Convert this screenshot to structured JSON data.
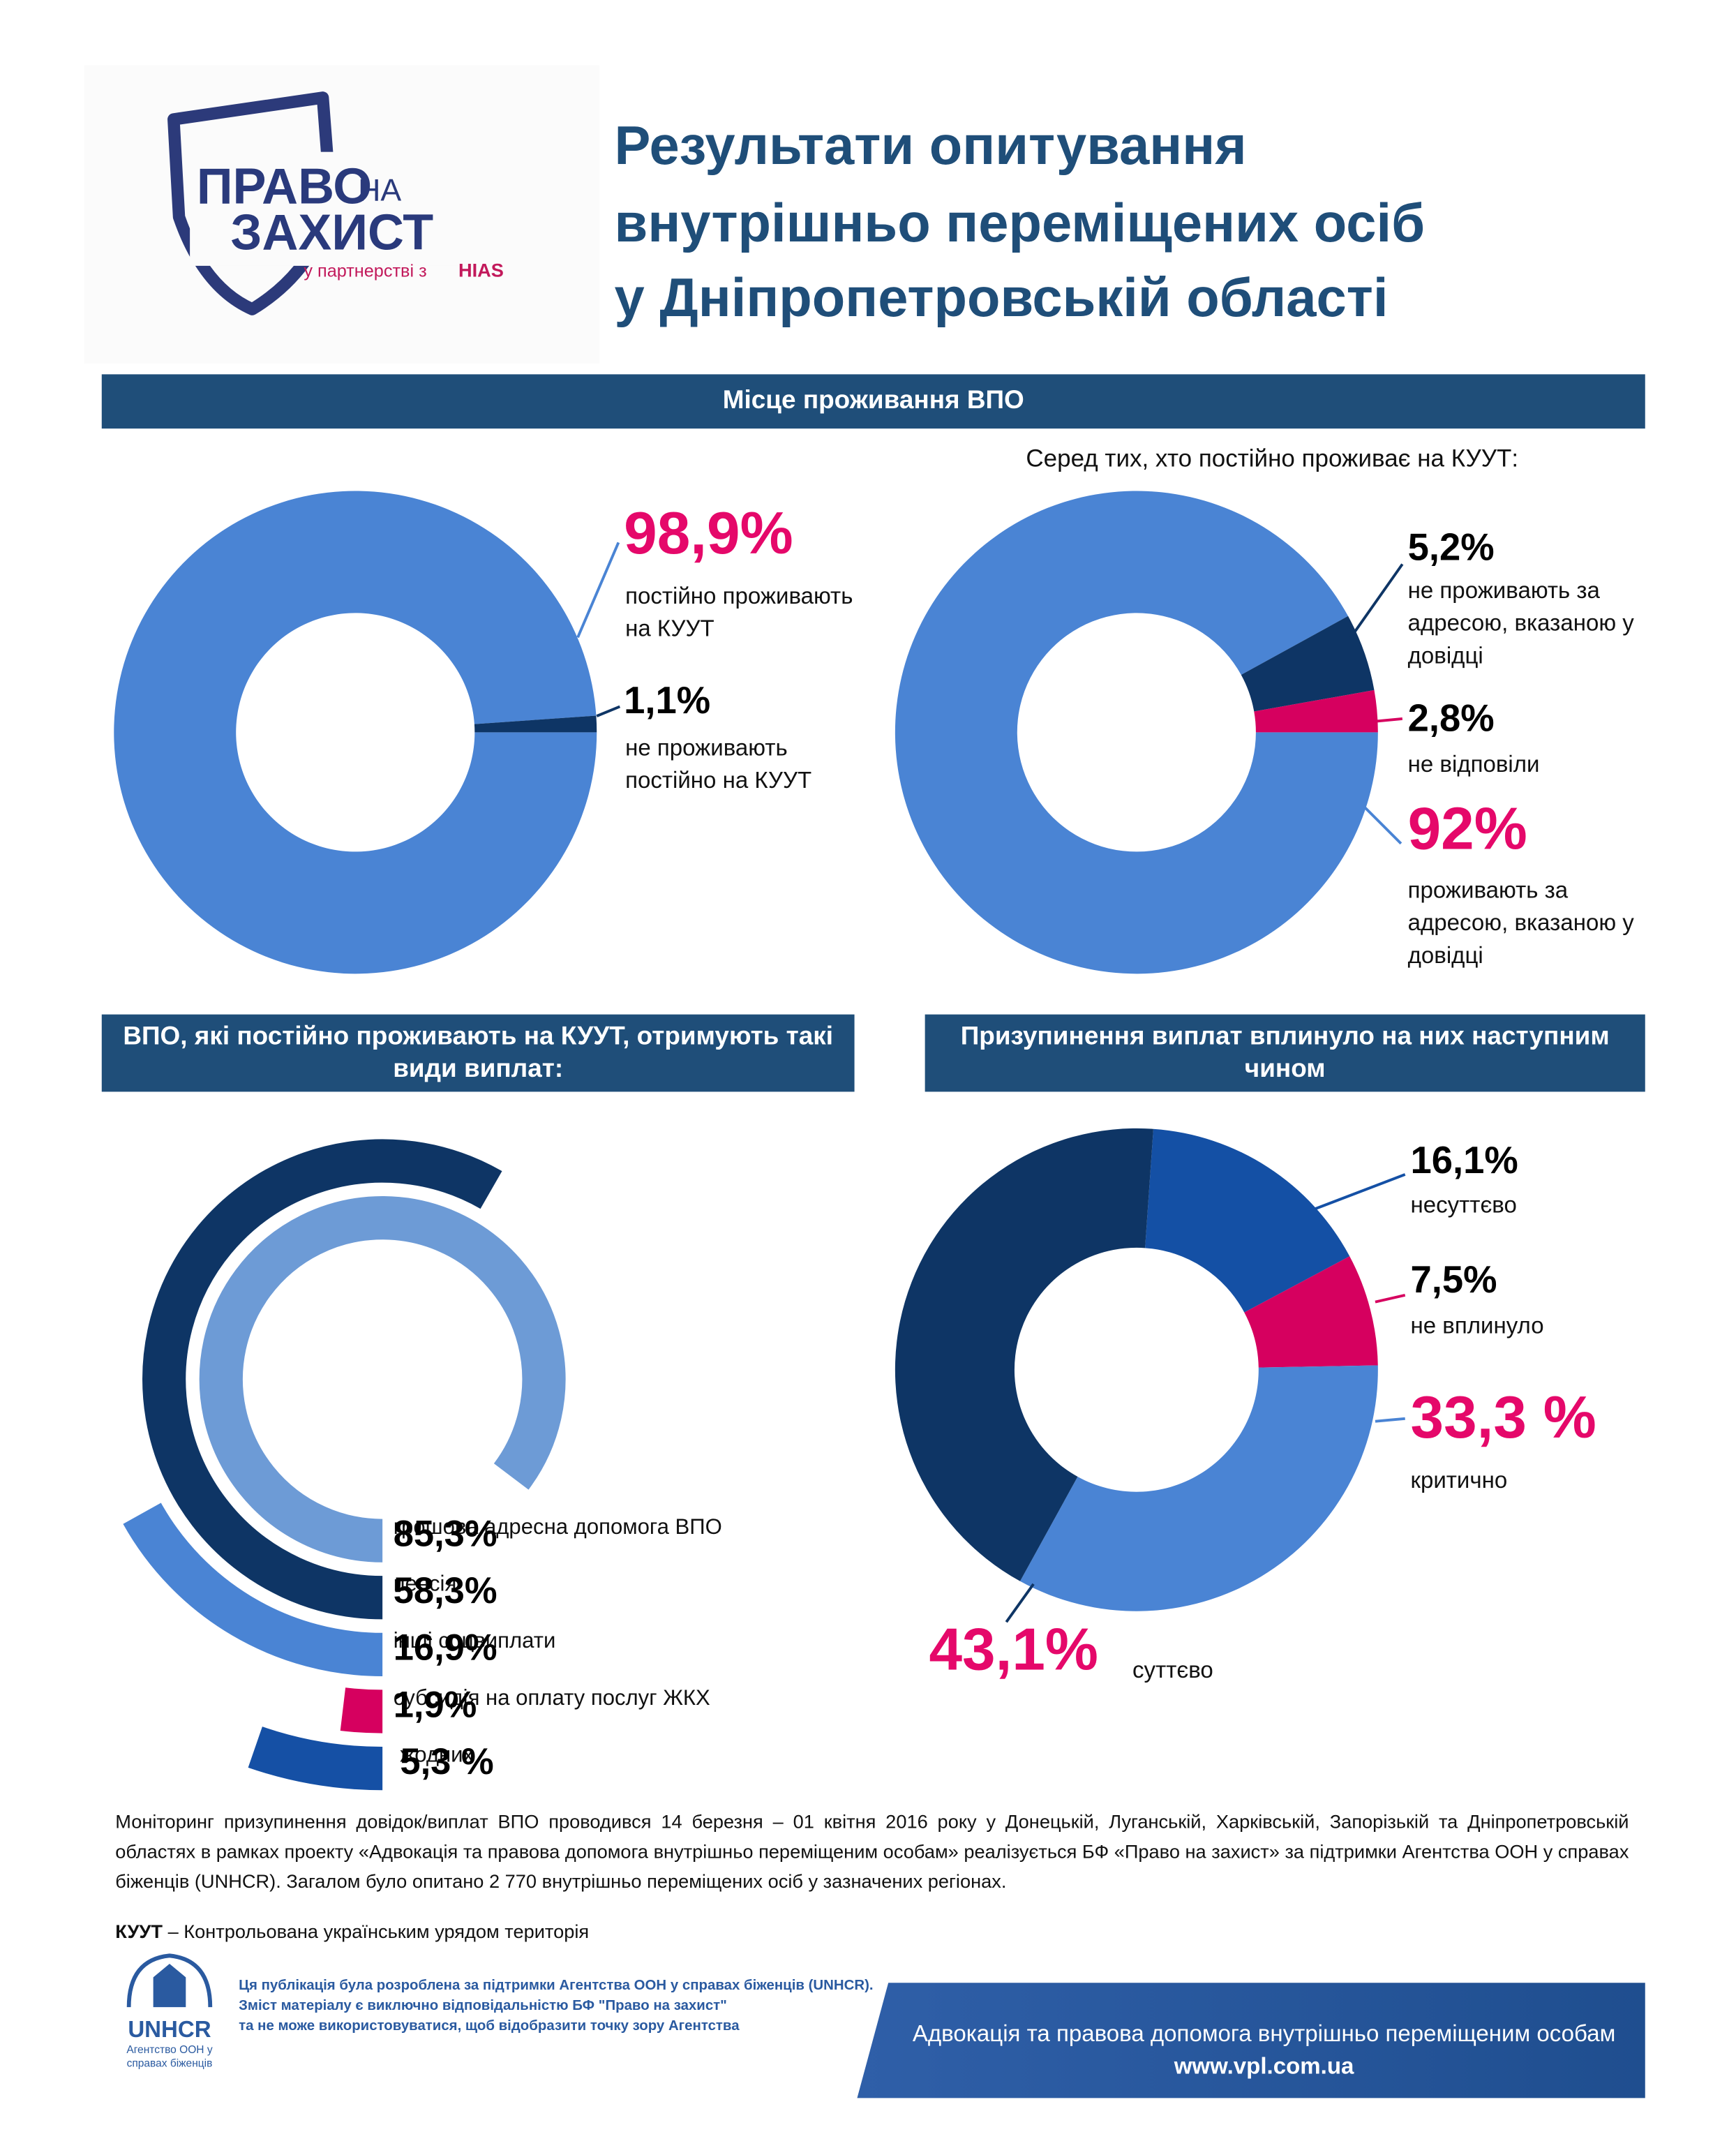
{
  "header": {
    "logo_word1": "ПРАВО",
    "logo_word_na": "НА",
    "logo_word2": "ЗАХИСТ",
    "logo_partner": "у партнерстві з",
    "logo_hias": "HIAS",
    "title_lines": [
      "Результати опитування",
      "внутрішньо переміщених осіб",
      "у Дніпропетровській області"
    ]
  },
  "sections": [
    "Місце проживання ВПО",
    "ВПО, які постійно проживають на КУУТ, отримують такі види виплат:",
    "Призупинення виплат вплинуло на них наступним чином"
  ],
  "chart_data": [
    {
      "type": "donut",
      "categories": [
        "постійно проживають на КУУТ",
        "не проживають постійно на КУУТ"
      ],
      "values": [
        98.9,
        1.1
      ],
      "value_labels": [
        "98,9%",
        "1,1%"
      ],
      "colors": [
        "#4a84d4",
        "#0e3565"
      ],
      "label_colors": [
        "#e5086a",
        "#000000"
      ]
    },
    {
      "type": "donut",
      "subtitle": "Серед тих, хто постійно проживає на КУУТ:",
      "categories": [
        "проживають за адресою, вказаною у довідці",
        "не проживають за адресою, вказаною у довідці",
        "не відповіли"
      ],
      "values": [
        92,
        5.2,
        2.8
      ],
      "value_labels": [
        "92%",
        "5,2%",
        "2,8%"
      ],
      "colors": [
        "#4a84d4",
        "#0e3565",
        "#d6005f"
      ],
      "label_colors": [
        "#e5086a",
        "#000000",
        "#000000"
      ]
    },
    {
      "type": "radial_bar",
      "categories": [
        "грошова адресна допомога ВПО",
        "пенсія",
        "інші соцвиплати",
        "субсидія на оплату послуг ЖКХ",
        "жодних"
      ],
      "values": [
        85.3,
        58.3,
        16.9,
        1.9,
        5.3
      ],
      "value_labels": [
        "85,3%",
        "58,3%",
        "16,9%",
        "1,9%",
        "5,3 %"
      ],
      "colors": [
        "#6d9bd6",
        "#0e3565",
        "#4a84d4",
        "#d6005f",
        "#1550a5"
      ],
      "label_colors": [
        "#000000",
        "#000000",
        "#000000",
        "#000000",
        "#000000"
      ]
    },
    {
      "type": "donut",
      "categories": [
        "несуттєво",
        "не вплинуло",
        "критично",
        "суттєво"
      ],
      "values": [
        16.1,
        7.5,
        33.3,
        43.1
      ],
      "value_labels": [
        "16,1%",
        "7,5%",
        "33,3 %",
        "43,1%"
      ],
      "colors": [
        "#1450a5",
        "#d6005f",
        "#4a84d4",
        "#0e3565"
      ],
      "label_colors": [
        "#000000",
        "#000000",
        "#e5086a",
        "#e5086a"
      ]
    }
  ],
  "notes": {
    "text": "Моніторинг призупинення довідок/виплат ВПО проводився 14 березня – 01 квітня 2016 року у Донецькій, Луганській, Харківській, Запорізькій та Дніпропетровській областях в рамках проекту «Адвокація та правова допомога внутрішньо переміщеним особам» реалізується БФ «Право на захист» за підтримки Агентства ООН у справах біженців (UNHCR). Загалом було опитано 2 770 внутрішньо переміщених осіб у зазначених регіонах.",
    "abbr": "КУУТ",
    "abbr_definition": "– Контрольована українським урядом територія"
  },
  "footer": {
    "unhcr": "UNHCR",
    "unhcr_sub": [
      "Агентство ООН у",
      "справах біженців"
    ],
    "disclaimer": [
      "Ця публікація була розроблена за підтримки Агентства ООН у справах біженців (UNHCR).",
      "Зміст матеріалу є виключно відповідальністю БФ \"Право на захист\"",
      "та не може використовуватися, щоб відобразити точку зору Агентства"
    ],
    "banner_text": "Адвокація та правова допомога внутрішньо переміщеним особам",
    "banner_url": "www.vpl.com.ua"
  }
}
